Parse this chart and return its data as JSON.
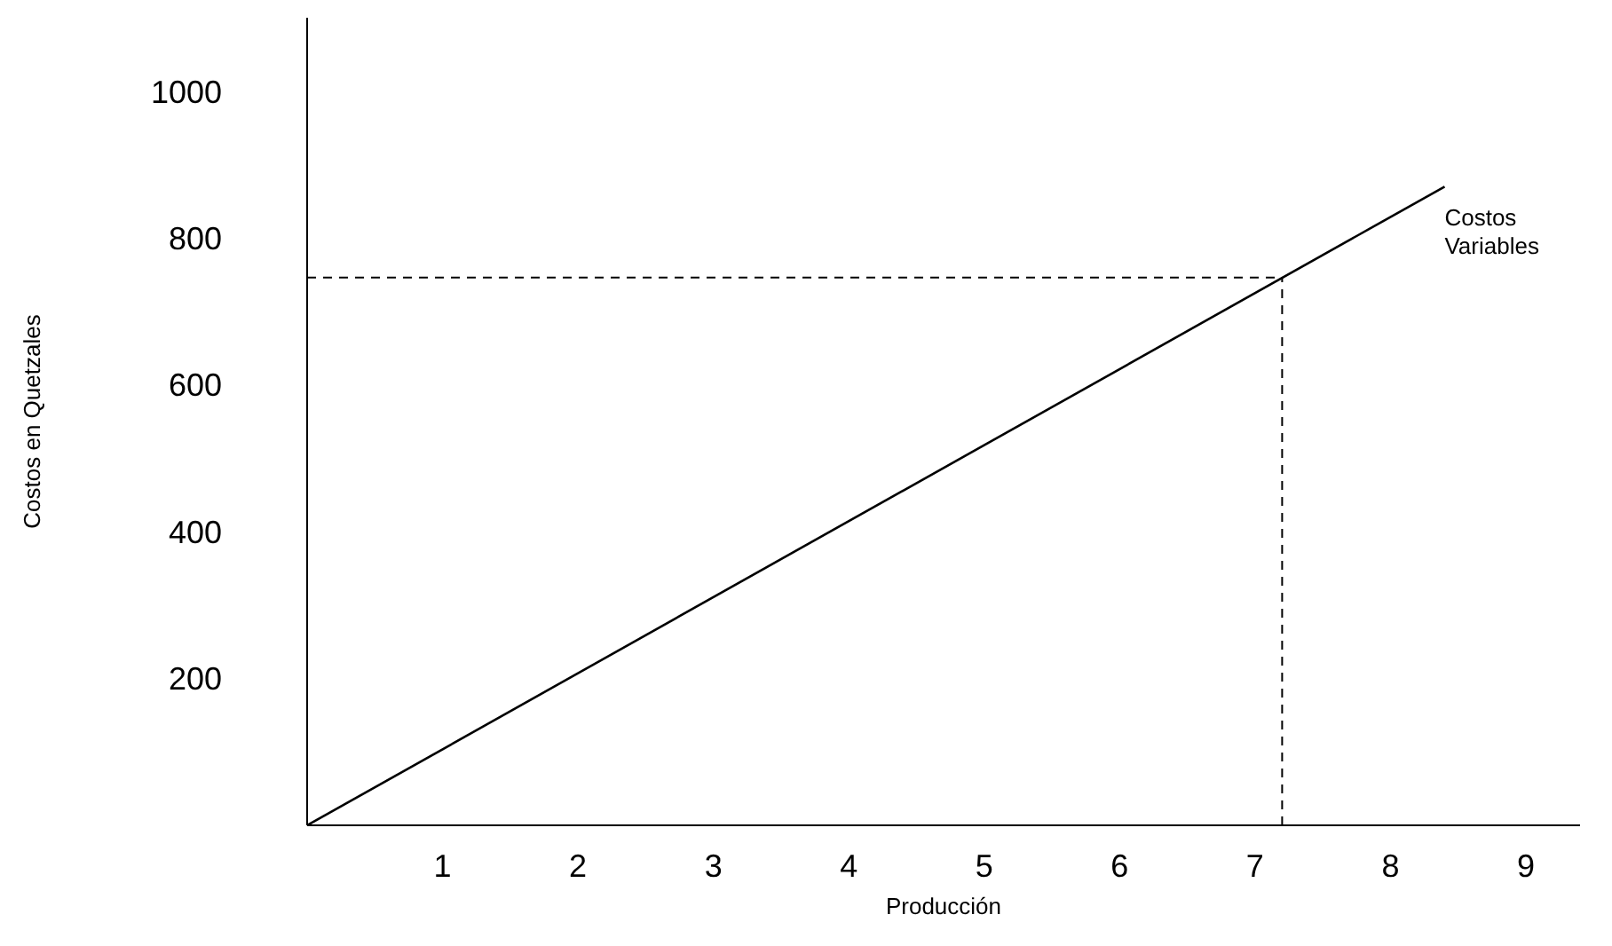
{
  "chart_data": {
    "type": "line",
    "xlabel": "Producción",
    "ylabel": "Costos en Quetzales",
    "series": [
      {
        "name": "Costos Variables",
        "color": "#000000",
        "x": [
          0,
          8.4
        ],
        "values": [
          0,
          870
        ]
      }
    ],
    "xlim": [
      0,
      9.4
    ],
    "xticks": [
      1,
      2,
      3,
      4,
      5,
      6,
      7,
      8,
      9
    ],
    "ylim": [
      0,
      1100
    ],
    "yticks": [
      200,
      400,
      600,
      800,
      1000
    ],
    "marker": "none",
    "line_style": "solid",
    "ref_lines": [
      {
        "axis": "x",
        "value": 7.2,
        "line_style": "dashed",
        "color": "#000000"
      },
      {
        "axis": "y",
        "value": 746,
        "line_style": "dashed",
        "color": "#000000"
      }
    ]
  }
}
